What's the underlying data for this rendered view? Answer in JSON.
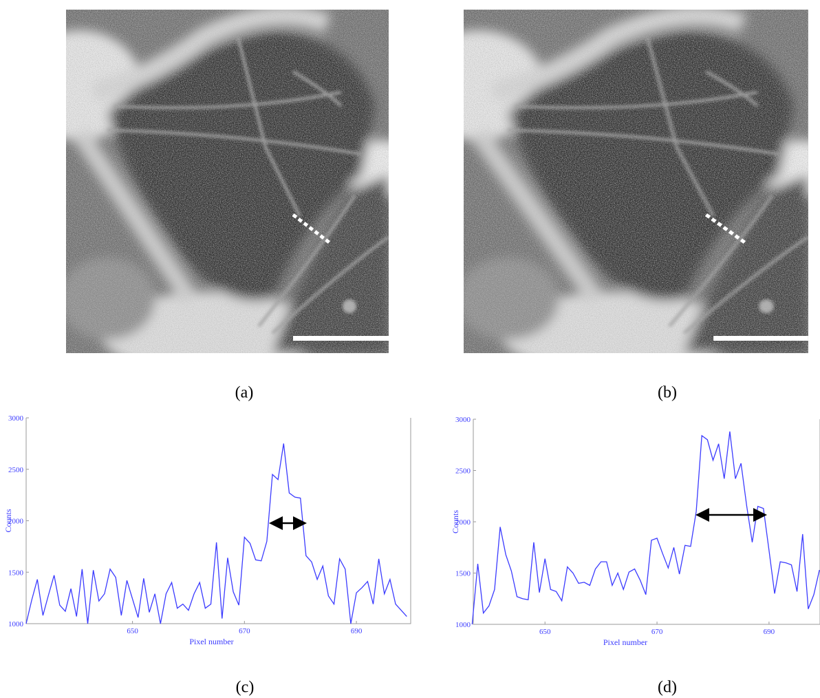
{
  "panel_labels": [
    "(a)",
    "(b)",
    "(c)",
    "(d)"
  ],
  "chart_data": [
    {
      "type": "line",
      "x_label": "Pixel number",
      "y_label": "Counts",
      "xlim": [
        631,
        699.7
      ],
      "xticks": [
        650,
        670,
        690
      ],
      "ylim": [
        1000,
        3000
      ],
      "yticks": [
        1000,
        1500,
        2000,
        2500,
        3000
      ],
      "color": "#3b3bff",
      "x": [
        631,
        632,
        633,
        634,
        635,
        636,
        637,
        638,
        639,
        640,
        641,
        642,
        643,
        644,
        645,
        646,
        647,
        648,
        649,
        650,
        651,
        652,
        653,
        654,
        655,
        656,
        657,
        658,
        659,
        660,
        661,
        662,
        663,
        664,
        665,
        666,
        667,
        668,
        669,
        670,
        671,
        672,
        673,
        674,
        675,
        676,
        677,
        678,
        679,
        680,
        681,
        682,
        683,
        684,
        685,
        686,
        687,
        688,
        689,
        690,
        691,
        692,
        693,
        694,
        695,
        696,
        697,
        698,
        699
      ],
      "values": [
        1000,
        1230,
        1430,
        1080,
        1280,
        1470,
        1180,
        1120,
        1340,
        1070,
        1530,
        1000,
        1520,
        1220,
        1290,
        1530,
        1450,
        1080,
        1420,
        1240,
        1060,
        1440,
        1110,
        1290,
        1000,
        1290,
        1400,
        1150,
        1190,
        1130,
        1290,
        1400,
        1150,
        1190,
        1790,
        1050,
        1640,
        1310,
        1180,
        1840,
        1780,
        1620,
        1610,
        1800,
        2450,
        2400,
        2750,
        2270,
        2230,
        2220,
        1660,
        1600,
        1430,
        1560,
        1270,
        1190,
        1630,
        1530,
        1000,
        1300,
        1350,
        1410,
        1190,
        1630,
        1290,
        1430,
        1190,
        1130,
        1070
      ]
    },
    {
      "type": "line",
      "x_label": "Pixel number",
      "y_label": "Counts",
      "xlim": [
        637.2,
        699.1
      ],
      "xticks": [
        650,
        670,
        690
      ],
      "ylim": [
        1000,
        3000
      ],
      "yticks": [
        1000,
        1500,
        2000,
        2500,
        3000
      ],
      "color": "#3b3bff",
      "x": [
        637,
        638,
        639,
        640,
        641,
        642,
        643,
        644,
        645,
        646,
        647,
        648,
        649,
        650,
        651,
        652,
        653,
        654,
        655,
        656,
        657,
        658,
        659,
        660,
        661,
        662,
        663,
        664,
        665,
        666,
        667,
        668,
        669,
        670,
        671,
        672,
        673,
        674,
        675,
        676,
        677,
        678,
        679,
        680,
        681,
        682,
        683,
        684,
        685,
        686,
        687,
        688,
        689,
        690,
        691,
        692,
        693,
        694,
        695,
        696,
        697,
        698,
        699
      ],
      "values": [
        1000,
        1590,
        1110,
        1180,
        1340,
        1950,
        1680,
        1520,
        1270,
        1250,
        1240,
        1800,
        1310,
        1640,
        1340,
        1320,
        1230,
        1560,
        1500,
        1400,
        1410,
        1380,
        1540,
        1610,
        1610,
        1380,
        1500,
        1340,
        1510,
        1540,
        1430,
        1290,
        1820,
        1840,
        1690,
        1550,
        1750,
        1490,
        1770,
        1760,
        2100,
        2840,
        2800,
        2600,
        2760,
        2420,
        2880,
        2420,
        2570,
        2160,
        1800,
        2150,
        2130,
        1720,
        1300,
        1610,
        1600,
        1580,
        1320,
        1880,
        1150,
        1290,
        1530
      ]
    }
  ]
}
